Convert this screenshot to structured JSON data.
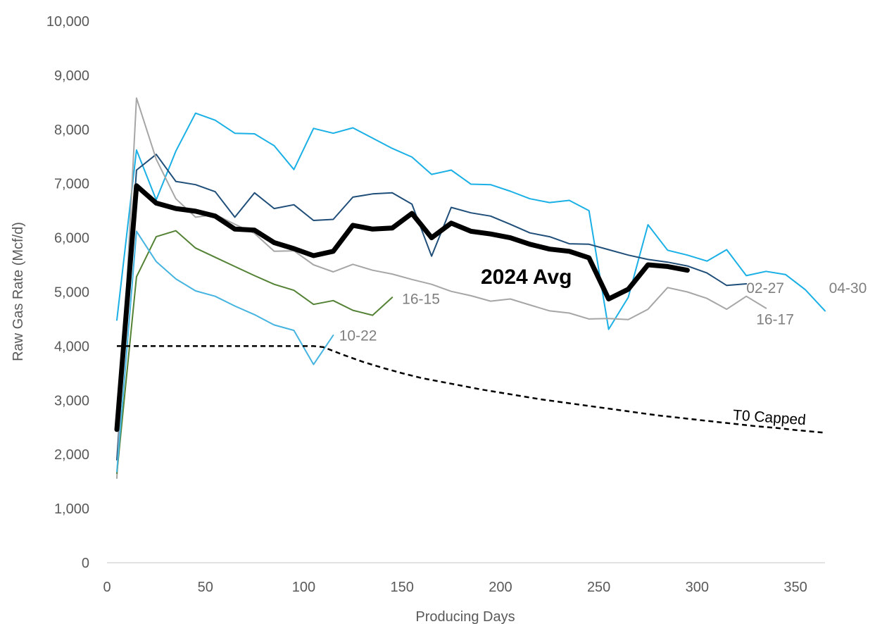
{
  "chart_data": {
    "type": "line",
    "title": "",
    "xlabel": "Producing Days",
    "ylabel": "Raw Gas Rate (Mcf/d)",
    "xlim": [
      0,
      365
    ],
    "ylim": [
      0,
      10000
    ],
    "x_ticks": [
      0,
      50,
      100,
      150,
      200,
      250,
      300,
      350
    ],
    "x_tick_labels": [
      "0",
      "50",
      "100",
      "150",
      "200",
      "250",
      "300",
      "350"
    ],
    "y_ticks": [
      0,
      1000,
      2000,
      3000,
      4000,
      5000,
      6000,
      7000,
      8000,
      9000,
      10000
    ],
    "y_tick_labels": [
      "0",
      "1,000",
      "2,000",
      "3,000",
      "4,000",
      "5,000",
      "6,000",
      "7,000",
      "8,000",
      "9,000",
      "10,000"
    ],
    "grid": false,
    "legend": "none",
    "series": [
      {
        "name": "04-30",
        "color": "#1ab0e6",
        "width": 2,
        "x": [
          5,
          15,
          25,
          35,
          45,
          55,
          65,
          75,
          85,
          95,
          105,
          115,
          125,
          135,
          145,
          155,
          165,
          175,
          185,
          195,
          205,
          215,
          225,
          235,
          245,
          255,
          265,
          275,
          285,
          295,
          305,
          315,
          325,
          335,
          345,
          355,
          365
        ],
        "y": [
          4480,
          7620,
          6700,
          7600,
          8300,
          8170,
          7930,
          7920,
          7700,
          7260,
          8020,
          7930,
          8030,
          7840,
          7650,
          7490,
          7170,
          7250,
          6990,
          6980,
          6860,
          6720,
          6650,
          6690,
          6500,
          4310,
          4900,
          6240,
          5770,
          5680,
          5570,
          5780,
          5300,
          5380,
          5320,
          5040,
          4650
        ]
      },
      {
        "name": "02-27",
        "color": "#1f4e79",
        "width": 2,
        "x": [
          5,
          15,
          25,
          35,
          45,
          55,
          65,
          75,
          85,
          95,
          105,
          115,
          125,
          135,
          145,
          155,
          165,
          175,
          185,
          195,
          205,
          215,
          225,
          235,
          245,
          255,
          265,
          275,
          285,
          295,
          305,
          315,
          325
        ],
        "y": [
          1900,
          7250,
          7540,
          7040,
          6980,
          6850,
          6380,
          6830,
          6540,
          6610,
          6320,
          6340,
          6750,
          6810,
          6830,
          6620,
          5660,
          6560,
          6460,
          6400,
          6250,
          6090,
          6020,
          5890,
          5880,
          5780,
          5680,
          5600,
          5550,
          5480,
          5350,
          5120,
          5150
        ]
      },
      {
        "name": "16-17",
        "color": "#a6a6a6",
        "width": 2,
        "x": [
          5,
          15,
          25,
          35,
          45,
          55,
          65,
          75,
          85,
          95,
          105,
          115,
          125,
          135,
          145,
          155,
          165,
          175,
          185,
          195,
          205,
          215,
          225,
          235,
          245,
          255,
          265,
          275,
          285,
          295,
          305,
          315,
          325,
          335
        ],
        "y": [
          1560,
          8580,
          7450,
          6720,
          6380,
          6430,
          6250,
          6080,
          5750,
          5760,
          5500,
          5370,
          5510,
          5400,
          5330,
          5230,
          5140,
          5010,
          4930,
          4830,
          4870,
          4760,
          4650,
          4610,
          4500,
          4510,
          4490,
          4680,
          5080,
          5000,
          4880,
          4680,
          4920,
          4700
        ]
      },
      {
        "name": "16-15",
        "color": "#548235",
        "width": 2,
        "x": [
          5,
          15,
          25,
          35,
          45,
          55,
          65,
          75,
          85,
          95,
          105,
          115,
          125,
          135,
          145
        ],
        "y": [
          1650,
          5280,
          6020,
          6130,
          5810,
          5640,
          5470,
          5300,
          5140,
          5030,
          4770,
          4840,
          4660,
          4570,
          4900
        ]
      },
      {
        "name": "10-22",
        "color": "#45b4e0",
        "width": 2,
        "x": [
          5,
          15,
          25,
          35,
          45,
          55,
          65,
          75,
          85,
          95,
          105,
          115
        ],
        "y": [
          1680,
          6120,
          5560,
          5240,
          5020,
          4920,
          4740,
          4580,
          4390,
          4290,
          3660,
          4200
        ]
      },
      {
        "name": "T0 Capped",
        "color": "#000000",
        "width": 2.5,
        "dash": "7,5",
        "x": [
          5,
          15,
          25,
          50,
          75,
          100,
          105,
          110,
          120,
          130,
          140,
          150,
          160,
          170,
          180,
          190,
          200,
          210,
          220,
          230,
          240,
          250,
          260,
          270,
          280,
          290,
          300,
          310,
          320,
          330,
          340,
          350,
          365
        ],
        "y": [
          4000,
          4000,
          4000,
          4000,
          4000,
          4000,
          4000,
          3980,
          3840,
          3710,
          3600,
          3500,
          3410,
          3340,
          3270,
          3200,
          3140,
          3080,
          3020,
          2970,
          2920,
          2870,
          2820,
          2770,
          2720,
          2680,
          2640,
          2600,
          2560,
          2520,
          2490,
          2450,
          2400
        ]
      },
      {
        "name": "2024 Avg",
        "color": "#000000",
        "width": 7,
        "x": [
          5,
          15,
          25,
          35,
          45,
          55,
          65,
          75,
          85,
          95,
          105,
          115,
          125,
          135,
          145,
          155,
          165,
          175,
          185,
          195,
          205,
          215,
          225,
          235,
          245,
          255,
          265,
          275,
          285,
          295
        ],
        "y": [
          2460,
          6960,
          6640,
          6540,
          6490,
          6400,
          6160,
          6140,
          5910,
          5800,
          5670,
          5750,
          6230,
          6160,
          6180,
          6450,
          6000,
          6270,
          6120,
          6070,
          6000,
          5880,
          5790,
          5750,
          5630,
          4870,
          5050,
          5500,
          5470,
          5400
        ]
      }
    ],
    "labels": [
      {
        "text": "04-30",
        "color": "#7f7f7f",
        "x": 367,
        "y": 4980,
        "anchor": "start",
        "rotate": 0,
        "class": "series-label"
      },
      {
        "text": "02-27",
        "color": "#7f7f7f",
        "x": 325,
        "y": 4980,
        "anchor": "start",
        "rotate": 0,
        "class": "series-label"
      },
      {
        "text": "16-17",
        "color": "#7f7f7f",
        "x": 330,
        "y": 4400,
        "anchor": "start",
        "rotate": 0,
        "class": "series-label"
      },
      {
        "text": "16-15",
        "color": "#7f7f7f",
        "x": 150,
        "y": 4780,
        "anchor": "start",
        "rotate": 0,
        "class": "series-label"
      },
      {
        "text": "10-22",
        "color": "#7f7f7f",
        "x": 118,
        "y": 4100,
        "anchor": "start",
        "rotate": 0,
        "class": "series-label"
      },
      {
        "text": "T0 Capped",
        "color": "#000000",
        "x": 318,
        "y": 2640,
        "anchor": "start",
        "rotate": 4,
        "class": "series-label"
      },
      {
        "text": "2024 Avg",
        "color": "#000000",
        "x": 190,
        "y": 5150,
        "anchor": "start",
        "rotate": 0,
        "class": "avg-label"
      }
    ]
  }
}
